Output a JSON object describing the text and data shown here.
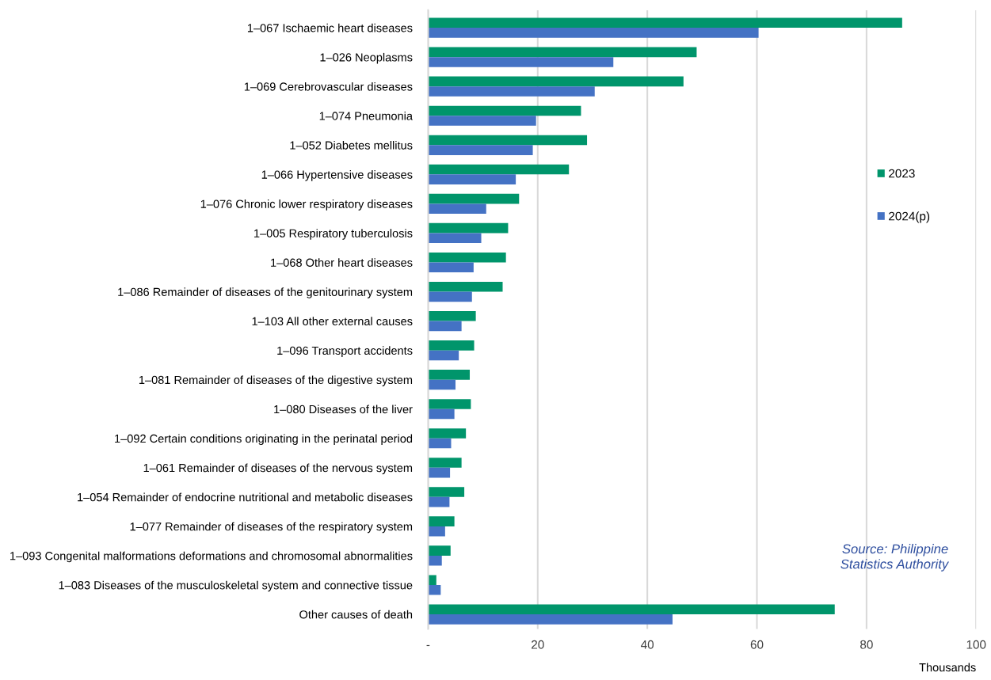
{
  "chart_data": {
    "type": "bar",
    "orientation": "horizontal",
    "categories": [
      "1–067 Ischaemic heart diseases",
      "1–026 Neoplasms",
      "1–069 Cerebrovascular diseases",
      "1–074 Pneumonia",
      "1–052 Diabetes mellitus",
      "1–066 Hypertensive diseases",
      "1–076 Chronic lower respiratory diseases",
      "1–005 Respiratory tuberculosis",
      "1–068 Other heart diseases",
      "1–086 Remainder of diseases of the genitourinary system",
      "1–103 All other external causes",
      "1–096 Transport accidents",
      "1–081 Remainder of diseases of the digestive system",
      "1–080 Diseases of the liver",
      "1–092 Certain conditions originating in the perinatal period",
      "1–061 Remainder of diseases of the nervous system",
      "1–054 Remainder of endocrine nutritional and metabolic diseases",
      "1–077 Remainder of diseases of the respiratory system",
      "1–093 Congenital malformations deformations and chromosomal abnormalities",
      "1–083 Diseases of the musculoskeletal system and connective tissue",
      "Other causes of death"
    ],
    "series": [
      {
        "name": "2023",
        "color": "#00956b",
        "values": [
          86.5,
          49.0,
          46.6,
          27.9,
          29.0,
          25.7,
          16.6,
          14.6,
          14.2,
          13.6,
          8.7,
          8.4,
          7.6,
          7.8,
          6.9,
          6.1,
          6.6,
          4.8,
          4.1,
          1.5,
          74.2
        ]
      },
      {
        "name": "2024(p)",
        "color": "#4472c4",
        "values": [
          60.3,
          33.8,
          30.4,
          19.7,
          19.1,
          16.0,
          10.6,
          9.7,
          8.3,
          8.0,
          6.1,
          5.6,
          5.0,
          4.8,
          4.2,
          4.0,
          3.9,
          3.1,
          2.5,
          2.3,
          44.6
        ]
      }
    ],
    "xlim": [
      0,
      100
    ],
    "xticks": [
      {
        "value": 0,
        "label": "-"
      },
      20,
      40,
      60,
      80,
      100
    ],
    "xlabel": "Thousands",
    "grid": "x",
    "legend": "right",
    "annotations": [
      "Source: Philippine Statistics Authority"
    ]
  }
}
